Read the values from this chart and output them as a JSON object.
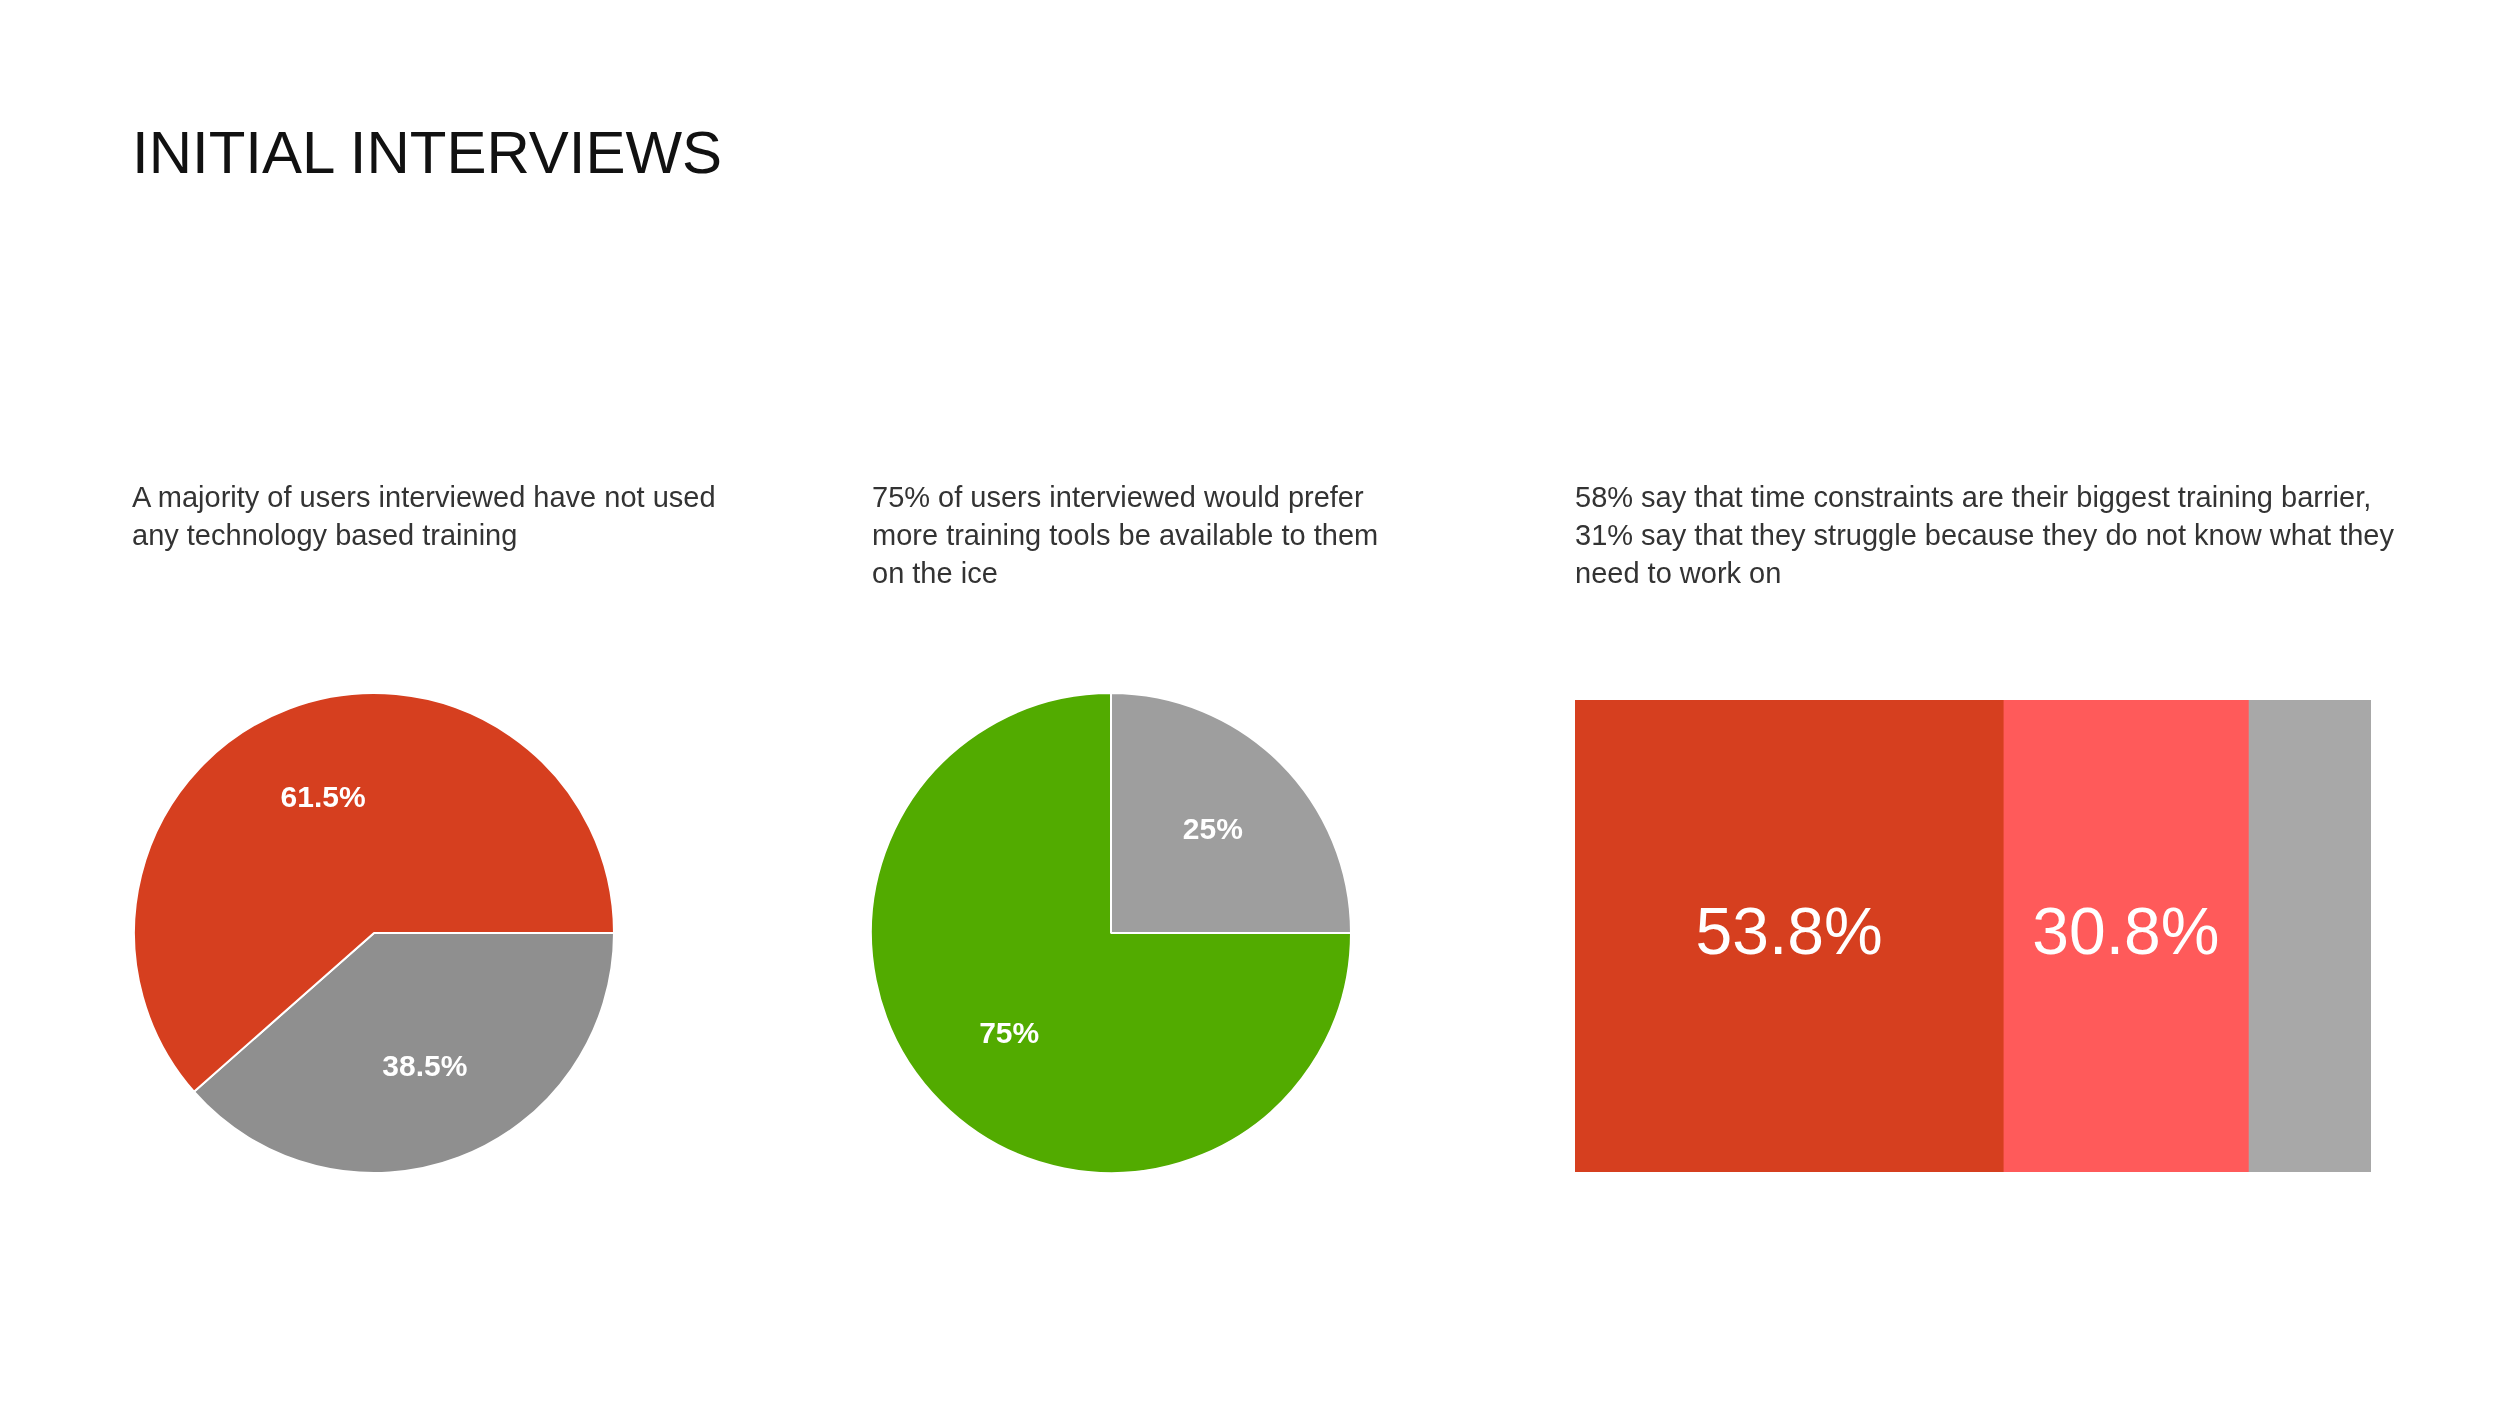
{
  "chart_data": [
    {
      "type": "pie",
      "title": "INITIAL INTERVIEWS",
      "subtitle": "A majority of users interviewed have not used any technology based training",
      "categories": [
        null,
        null
      ],
      "values": [
        38.5,
        61.5
      ],
      "colors": [
        "#8f8f8f",
        "#d63f1f"
      ],
      "value_labels": [
        "38.5%",
        "61.5%"
      ]
    },
    {
      "type": "pie",
      "title": "75% of users interviewed would prefer more training tools be available to them on the ice",
      "categories": [
        null,
        null
      ],
      "values": [
        25,
        75
      ],
      "colors": [
        "#9e9e9e",
        "#52ab00"
      ],
      "value_labels": [
        "25%",
        "75%"
      ]
    },
    {
      "type": "bar",
      "title": "58% say that time constraints are their biggest training barrier, 31% say that they struggle because they do not know what they need to work on",
      "orientation": "horizontal",
      "stacked": true,
      "xlim": [
        0,
        100
      ],
      "tick_labels": false,
      "categories": [
        null
      ],
      "series": [
        {
          "color": "#d63f1f",
          "values": [
            53.8
          ],
          "value_labels": [
            "53.8%"
          ]
        },
        {
          "color": "#ff5a5a",
          "values": [
            30.8
          ],
          "value_labels": [
            "30.8%"
          ]
        },
        {
          "color": "#a8a8a8",
          "values": [
            15.4
          ],
          "value_labels": [
            null
          ]
        }
      ]
    }
  ]
}
